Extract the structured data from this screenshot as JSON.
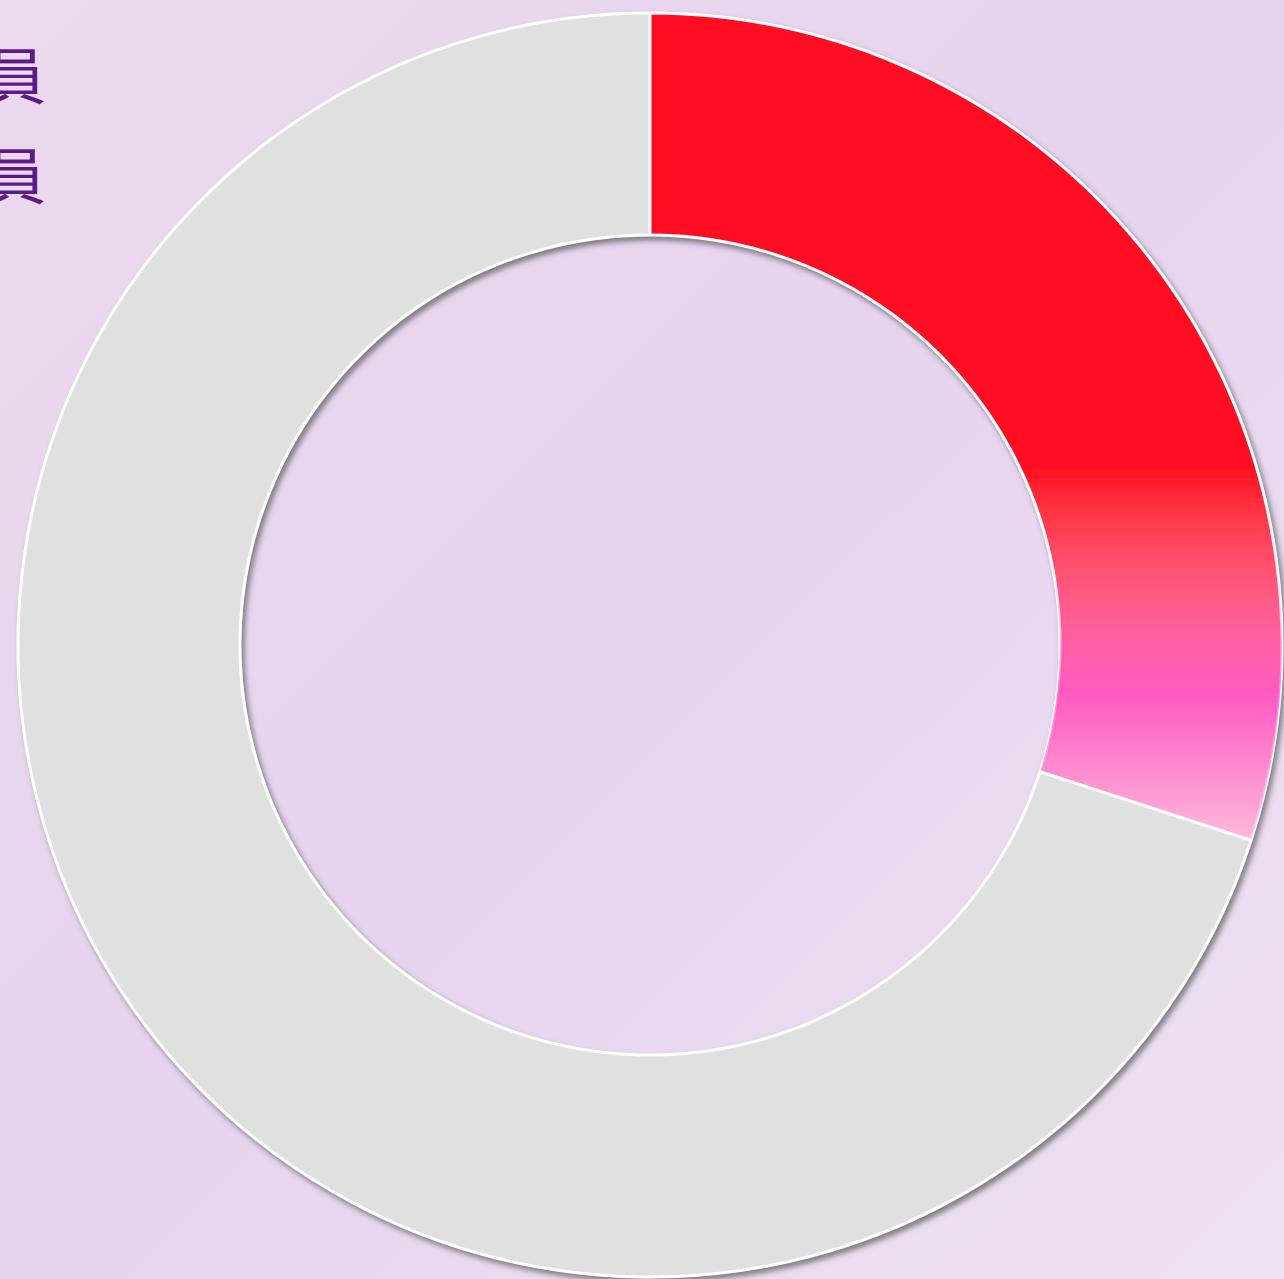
{
  "chart_data": {
    "type": "donut",
    "labels": [
      "員",
      "員"
    ],
    "values": [
      30,
      70
    ],
    "colors": [
      "#ff1020",
      "#e0e0e0"
    ]
  }
}
